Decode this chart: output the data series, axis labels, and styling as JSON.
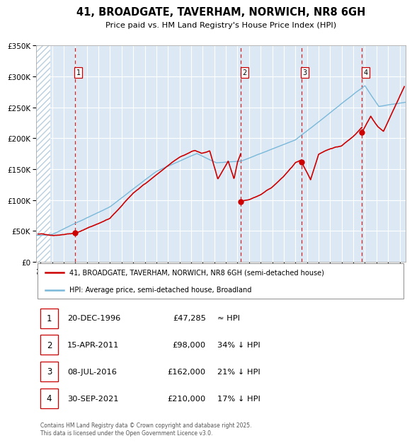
{
  "title": "41, BROADGATE, TAVERHAM, NORWICH, NR8 6GH",
  "subtitle": "Price paid vs. HM Land Registry's House Price Index (HPI)",
  "legend_line1": "41, BROADGATE, TAVERHAM, NORWICH, NR8 6GH (semi-detached house)",
  "legend_line2": "HPI: Average price, semi-detached house, Broadland",
  "hpi_color": "#7ab8d9",
  "price_color": "#cc0000",
  "bg_color": "#dce9f5",
  "hatch_color": "#b8cede",
  "grid_color": "#ffffff",
  "dashed_line_color": "#cc0000",
  "ylim": [
    0,
    350000
  ],
  "yticks": [
    0,
    50000,
    100000,
    150000,
    200000,
    250000,
    300000,
    350000
  ],
  "xlim_start": 1993.6,
  "xlim_end": 2025.5,
  "hatch_end": 1994.85,
  "sales": [
    {
      "num": 1,
      "date": "20-DEC-1996",
      "price": 47285,
      "year": 1996.97,
      "relation": "≈ HPI"
    },
    {
      "num": 2,
      "date": "15-APR-2011",
      "price": 98000,
      "year": 2011.29,
      "relation": "34% ↓ HPI"
    },
    {
      "num": 3,
      "date": "08-JUL-2016",
      "price": 162000,
      "year": 2016.52,
      "relation": "21% ↓ HPI"
    },
    {
      "num": 4,
      "date": "30-SEP-2021",
      "price": 210000,
      "year": 2021.75,
      "relation": "17% ↓ HPI"
    }
  ],
  "footnote": "Contains HM Land Registry data © Crown copyright and database right 2025.\nThis data is licensed under the Open Government Licence v3.0."
}
